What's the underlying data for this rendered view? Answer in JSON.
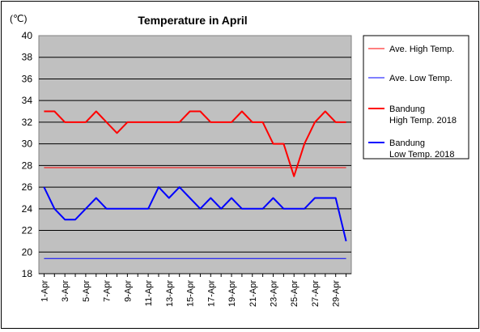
{
  "chart_data": {
    "type": "line",
    "title": "Temperature in April",
    "ylabel": "(℃)",
    "xlabel": "",
    "ylim": [
      18,
      40
    ],
    "yticks": [
      18,
      20,
      22,
      24,
      26,
      28,
      30,
      32,
      34,
      36,
      38,
      40
    ],
    "grid": true,
    "legend_position": "right",
    "background_color": "#c0c0c0",
    "categories": [
      "1-Apr",
      "2-Apr",
      "3-Apr",
      "4-Apr",
      "5-Apr",
      "6-Apr",
      "7-Apr",
      "8-Apr",
      "9-Apr",
      "10-Apr",
      "11-Apr",
      "12-Apr",
      "13-Apr",
      "14-Apr",
      "15-Apr",
      "16-Apr",
      "17-Apr",
      "18-Apr",
      "19-Apr",
      "20-Apr",
      "21-Apr",
      "22-Apr",
      "23-Apr",
      "24-Apr",
      "25-Apr",
      "26-Apr",
      "27-Apr",
      "28-Apr",
      "29-Apr",
      "30-Apr"
    ],
    "tick_labels": [
      "1-Apr",
      "",
      "3-Apr",
      "",
      "5-Apr",
      "",
      "7-Apr",
      "",
      "9-Apr",
      "",
      "11-Apr",
      "",
      "13-Apr",
      "",
      "15-Apr",
      "",
      "17-Apr",
      "",
      "19-Apr",
      "",
      "21-Apr",
      "",
      "23-Apr",
      "",
      "25-Apr",
      "",
      "27-Apr",
      "",
      "29-Apr",
      ""
    ],
    "series": [
      {
        "name": "Ave. High Temp.",
        "color": "#ff0000",
        "width": "thin",
        "values": [
          27.8,
          27.8,
          27.8,
          27.8,
          27.8,
          27.8,
          27.8,
          27.8,
          27.8,
          27.8,
          27.8,
          27.8,
          27.8,
          27.8,
          27.8,
          27.8,
          27.8,
          27.8,
          27.8,
          27.8,
          27.8,
          27.8,
          27.8,
          27.8,
          27.8,
          27.8,
          27.8,
          27.8,
          27.8,
          27.8
        ]
      },
      {
        "name": "Ave. Low Temp.",
        "color": "#0000ff",
        "width": "thin",
        "values": [
          19.4,
          19.4,
          19.4,
          19.4,
          19.4,
          19.4,
          19.4,
          19.4,
          19.4,
          19.4,
          19.4,
          19.4,
          19.4,
          19.4,
          19.4,
          19.4,
          19.4,
          19.4,
          19.4,
          19.4,
          19.4,
          19.4,
          19.4,
          19.4,
          19.4,
          19.4,
          19.4,
          19.4,
          19.4,
          19.4
        ]
      },
      {
        "name": "Bandung\nHigh Temp. 2018",
        "color": "#ff0000",
        "width": "thick",
        "values": [
          33,
          33,
          32,
          32,
          32,
          33,
          32,
          31,
          32,
          32,
          32,
          32,
          32,
          32,
          33,
          33,
          32,
          32,
          32,
          33,
          32,
          32,
          30,
          30,
          27,
          30,
          32,
          33,
          32,
          32
        ]
      },
      {
        "name": "Bandung\nLow Temp. 2018",
        "color": "#0000ff",
        "width": "thick",
        "values": [
          26,
          24,
          23,
          23,
          24,
          25,
          24,
          24,
          24,
          24,
          24,
          26,
          25,
          26,
          25,
          24,
          25,
          24,
          25,
          24,
          24,
          24,
          25,
          24,
          24,
          24,
          25,
          25,
          25,
          21
        ]
      }
    ]
  }
}
